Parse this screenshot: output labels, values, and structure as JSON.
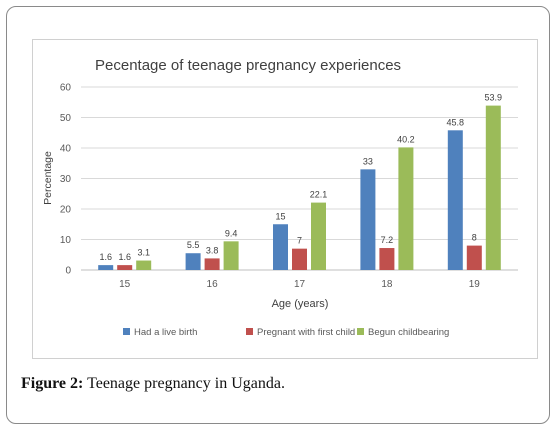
{
  "caption": {
    "label": "Figure 2:",
    "text": " Teenage pregnancy in Uganda."
  },
  "chart_data": {
    "type": "bar",
    "title": "Pecentage of teenage pregnancy experiences",
    "xlabel": "Age (years)",
    "ylabel": "Percentage",
    "categories": [
      "15",
      "16",
      "17",
      "18",
      "19"
    ],
    "ylim": [
      0,
      60
    ],
    "yticks": [
      0,
      10,
      20,
      30,
      40,
      50,
      60
    ],
    "grid": true,
    "legend_position": "bottom",
    "series": [
      {
        "name": "Had a live birth",
        "color": "#4f81bd",
        "values": [
          1.6,
          5.5,
          15,
          33,
          45.8
        ],
        "labels": [
          "1.6",
          "5.5",
          "15",
          "33",
          "45.8"
        ]
      },
      {
        "name": "Pregnant with first child",
        "color": "#c0504d",
        "values": [
          1.6,
          3.8,
          7,
          7.2,
          8
        ],
        "labels": [
          "1.6",
          "3.8",
          "7",
          "7.2",
          "8"
        ]
      },
      {
        "name": "Begun childbearing",
        "color": "#9bbb59",
        "values": [
          3.1,
          9.4,
          22.1,
          40.2,
          53.9
        ],
        "labels": [
          "3.1",
          "9.4",
          "22.1",
          "40.2",
          "53.9"
        ]
      }
    ]
  }
}
